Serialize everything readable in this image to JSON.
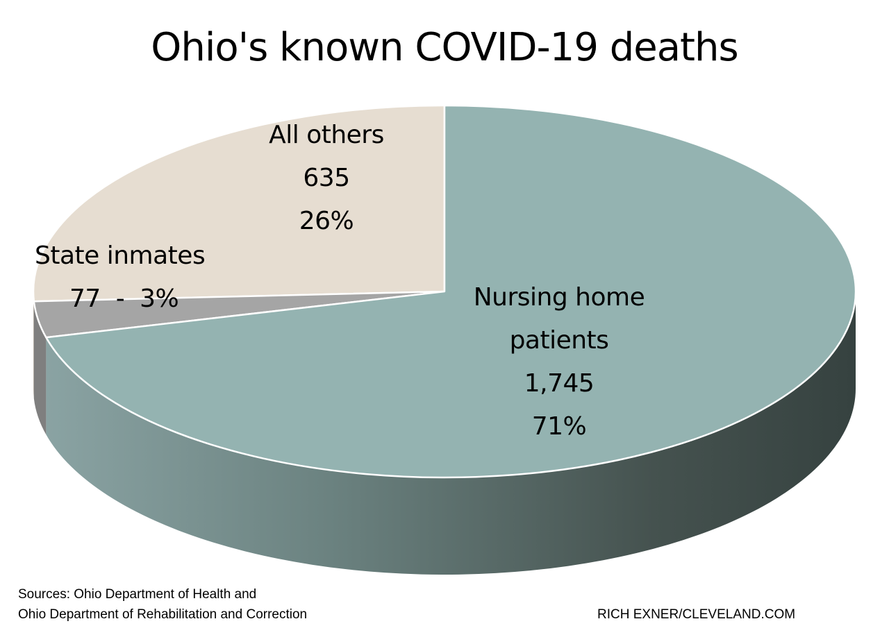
{
  "chart_data": {
    "type": "pie",
    "title": "Ohio's known COVID-19 deaths",
    "slices": [
      {
        "name": "All others",
        "value": 635,
        "percent": 26,
        "value_label": "635",
        "percent_label": "26%",
        "color": "#e6ddd1"
      },
      {
        "name": "State inmates",
        "value": 77,
        "percent": 3,
        "value_label": "77  -  3%",
        "color": "#a5a5a5"
      },
      {
        "name": "Nursing home patients",
        "name_line1": "Nursing home",
        "name_line2": "patients",
        "value": 1745,
        "percent": 71,
        "value_label": "1,745",
        "percent_label": "71%",
        "color": "#94b3b1"
      }
    ],
    "style": "3d"
  },
  "footer": {
    "sources_line1": "Sources:  Ohio Department of Health and",
    "sources_line2": "Ohio Department of Rehabilitation and Correction",
    "credit": "RICH EXNER/CLEVELAND.COM"
  }
}
